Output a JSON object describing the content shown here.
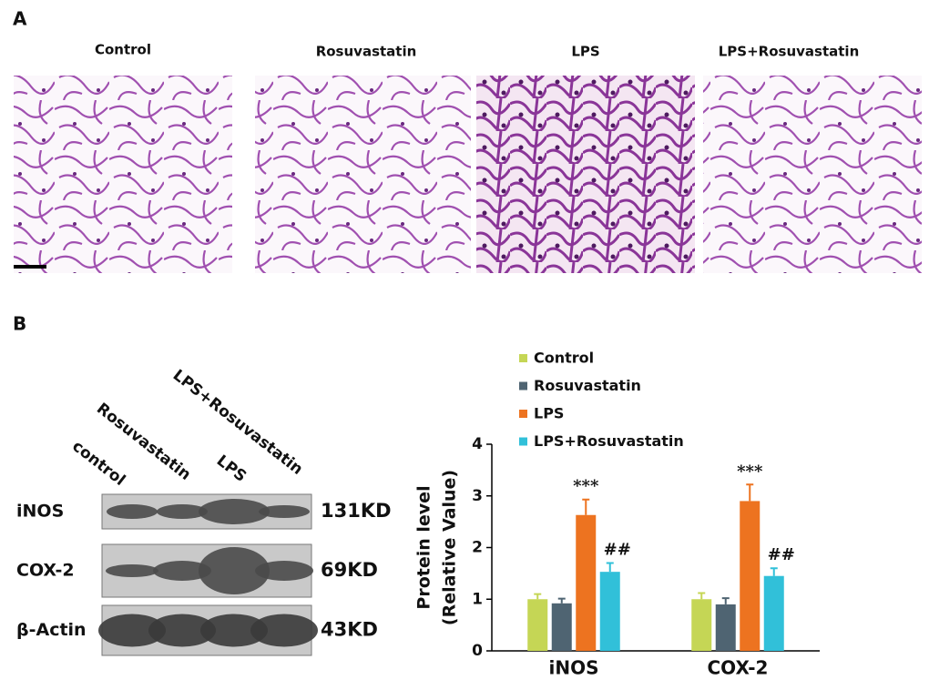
{
  "panel_a": {
    "label": "A",
    "image_titles": [
      "Control",
      "Rosuvastatin",
      "LPS",
      "LPS+Rosuvastatin"
    ]
  },
  "panel_b": {
    "label": "B",
    "lanes": [
      "control",
      "Rosuvastatin",
      "LPS",
      "LPS+Rosuvastatin"
    ],
    "blots": [
      {
        "protein": "iNOS",
        "size": "131KD"
      },
      {
        "protein": "COX-2",
        "size": "69KD"
      },
      {
        "protein": "β-Actin",
        "size": "43KD"
      }
    ]
  },
  "chart_data": {
    "type": "bar",
    "y_label": [
      "Protein level",
      "(Relative Value)"
    ],
    "categories": [
      "iNOS",
      "COX-2"
    ],
    "series": [
      {
        "name": "Control",
        "color": "#c5d655",
        "values": [
          1.0,
          1.0
        ],
        "errors": [
          0.1,
          0.12
        ]
      },
      {
        "name": "Rosuvastatin",
        "color": "#4f6472",
        "values": [
          0.92,
          0.9
        ],
        "errors": [
          0.09,
          0.12
        ]
      },
      {
        "name": "LPS",
        "color": "#ed7320",
        "values": [
          2.63,
          2.9
        ],
        "errors": [
          0.3,
          0.32
        ],
        "significance": [
          "***",
          "***"
        ]
      },
      {
        "name": "LPS+Rosuvastatin",
        "color": "#31c0d9",
        "values": [
          1.53,
          1.45
        ],
        "errors": [
          0.17,
          0.15
        ],
        "significance": [
          "##",
          "##"
        ]
      }
    ],
    "ylim": [
      0,
      4
    ],
    "yticks": [
      0,
      1,
      2,
      3,
      4
    ]
  }
}
